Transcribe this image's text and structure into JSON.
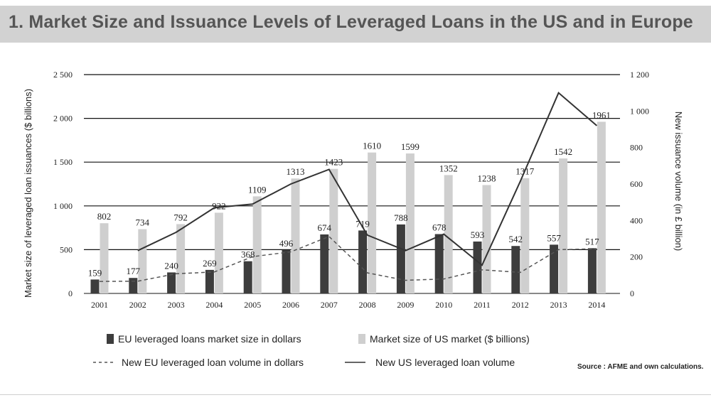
{
  "header": {
    "title": "1. Market Size and Issuance Levels of Leveraged Loans in the US and in Europe"
  },
  "chart_data": {
    "type": "bar",
    "categories": [
      "2001",
      "2002",
      "2003",
      "2004",
      "2005",
      "2006",
      "2007",
      "2008",
      "2009",
      "2010",
      "2011",
      "2012",
      "2013",
      "2014"
    ],
    "series": [
      {
        "name": "EU leveraged loans market size in dollars",
        "kind": "bar",
        "axis": "left",
        "color": "#3d3d3d",
        "values": [
          159,
          177,
          240,
          269,
          368,
          496,
          674,
          719,
          788,
          678,
          593,
          542,
          557,
          517
        ],
        "labels": [
          "159",
          "177",
          "240",
          "269",
          "368",
          "496",
          "674",
          "719",
          "788",
          "678",
          "593",
          "542",
          "557",
          "517"
        ]
      },
      {
        "name": "Market size of US market ($ billions)",
        "kind": "bar",
        "axis": "left",
        "color": "#cfcfcf",
        "values": [
          802,
          734,
          792,
          922,
          1109,
          1313,
          1423,
          1610,
          1599,
          1352,
          1238,
          1317,
          1542,
          1961
        ],
        "labels": [
          "802",
          "734",
          "792",
          "922",
          "1109",
          "1313",
          "1423",
          "1610",
          "1599",
          "1352",
          "1238",
          "1317",
          "1542",
          "1961"
        ]
      },
      {
        "name": "New EU leveraged loan volume in dollars",
        "kind": "line",
        "style": "dashed",
        "axis": "left",
        "color": "#555555",
        "values": [
          137,
          140,
          225,
          245,
          420,
          475,
          650,
          235,
          150,
          165,
          270,
          240,
          500,
          510
        ]
      },
      {
        "name": "New US leveraged loan volume",
        "kind": "line",
        "style": "solid",
        "axis": "right",
        "color": "#333333",
        "values": [
          null,
          235,
          335,
          470,
          490,
          600,
          680,
          320,
          235,
          325,
          155,
          615,
          1100,
          920
        ]
      }
    ],
    "left_axis": {
      "label": "Market size of leveraged loan issuances ($ billions)",
      "ylim": [
        0,
        2500
      ],
      "ticks": [
        0,
        500,
        1000,
        1500,
        2000,
        2500
      ],
      "tick_labels": [
        "0",
        "500",
        "1 000",
        "1 500",
        "2 000",
        "2 500"
      ]
    },
    "right_axis": {
      "label": "New issuance volume (in £ billion)",
      "ylim": [
        0,
        1200
      ],
      "ticks": [
        0,
        200,
        400,
        600,
        800,
        1000,
        1200
      ],
      "tick_labels": [
        "0",
        "200",
        "400",
        "600",
        "800",
        "1 000",
        "1 200"
      ]
    },
    "legend": [
      {
        "label": "EU leveraged loans market size in dollars",
        "swatch": "dark-bar"
      },
      {
        "label": "Market size of US market ($ billions)",
        "swatch": "light-bar"
      },
      {
        "label": "New EU leveraged loan volume in dollars",
        "swatch": "dashed-line"
      },
      {
        "label": "New US leveraged loan volume",
        "swatch": "solid-line"
      }
    ],
    "grid": true,
    "source": "Source : AFME and own calculations."
  }
}
